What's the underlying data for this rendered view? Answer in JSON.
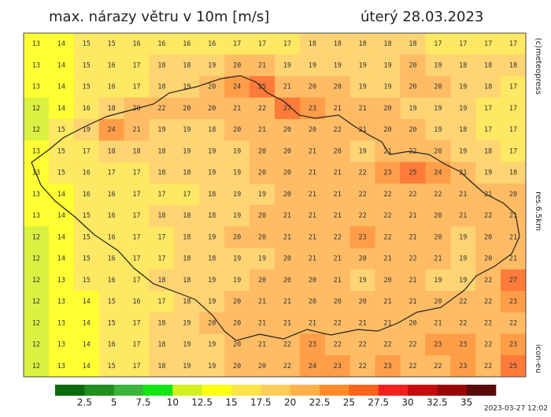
{
  "header": {
    "title": "max. nárazy větru v 10m [m/s]",
    "date": "úterý 28.03.2023"
  },
  "side": {
    "copyright": "(c)meteopress",
    "resolution": "res.6.5km",
    "model": "icon-eu"
  },
  "footer": {
    "timestamp": "2023-03-27 12:02"
  },
  "colorbar": {
    "labels": [
      2.5,
      5,
      7.5,
      10,
      12.5,
      15,
      17.5,
      20,
      22.5,
      25,
      27.5,
      30,
      32.5,
      35
    ],
    "colors": [
      "#0b6b0b",
      "#1f8f1f",
      "#3cb43c",
      "#14e614",
      "#d2f020",
      "#ffff10",
      "#ffe448",
      "#ffcc5a",
      "#ffb04a",
      "#ff8c28",
      "#ff6418",
      "#f42020",
      "#c80a0a",
      "#9a0606",
      "#5a0a0a"
    ]
  },
  "map": {
    "grid": [
      [
        13,
        14,
        15,
        15,
        16,
        16,
        16,
        16,
        17,
        17,
        17,
        18,
        18,
        18,
        18,
        18,
        17,
        17,
        17,
        17
      ],
      [
        13,
        14,
        15,
        16,
        17,
        18,
        18,
        19,
        20,
        21,
        19,
        19,
        19,
        19,
        19,
        20,
        19,
        18,
        18,
        18
      ],
      [
        13,
        14,
        15,
        16,
        17,
        18,
        19,
        20,
        24,
        25,
        21,
        20,
        20,
        19,
        19,
        20,
        20,
        19,
        18,
        17
      ],
      [
        12,
        14,
        16,
        18,
        20,
        22,
        20,
        20,
        21,
        22,
        27,
        23,
        21,
        21,
        20,
        19,
        19,
        19,
        17,
        17
      ],
      [
        12,
        15,
        19,
        24,
        21,
        19,
        19,
        18,
        20,
        21,
        20,
        20,
        22,
        21,
        20,
        20,
        19,
        18,
        17,
        17
      ],
      [
        13,
        15,
        17,
        18,
        18,
        18,
        19,
        19,
        19,
        20,
        20,
        21,
        20,
        19,
        21,
        22,
        20,
        19,
        18,
        17
      ],
      [
        13,
        15,
        16,
        17,
        17,
        18,
        18,
        19,
        19,
        20,
        20,
        21,
        21,
        22,
        23,
        25,
        24,
        21,
        19,
        18
      ],
      [
        13,
        14,
        16,
        16,
        17,
        17,
        17,
        18,
        19,
        19,
        20,
        21,
        21,
        22,
        22,
        22,
        22,
        21,
        21,
        20
      ],
      [
        13,
        14,
        15,
        16,
        17,
        18,
        18,
        18,
        19,
        20,
        21,
        21,
        21,
        22,
        22,
        21,
        20,
        21,
        22,
        21
      ],
      [
        12,
        14,
        15,
        16,
        17,
        17,
        18,
        19,
        20,
        20,
        21,
        21,
        22,
        23,
        22,
        21,
        20,
        19,
        20,
        21
      ],
      [
        12,
        14,
        15,
        16,
        17,
        17,
        18,
        18,
        19,
        19,
        20,
        21,
        21,
        20,
        21,
        22,
        21,
        19,
        20,
        21
      ],
      [
        12,
        13,
        15,
        16,
        17,
        18,
        18,
        19,
        19,
        20,
        20,
        20,
        21,
        19,
        20,
        21,
        19,
        19,
        22,
        27
      ],
      [
        12,
        13,
        14,
        15,
        16,
        17,
        18,
        19,
        20,
        21,
        21,
        20,
        20,
        20,
        21,
        21,
        20,
        22,
        22,
        23
      ],
      [
        12,
        13,
        14,
        15,
        17,
        18,
        19,
        20,
        20,
        21,
        21,
        21,
        22,
        21,
        21,
        20,
        21,
        22,
        22,
        22
      ],
      [
        12,
        13,
        14,
        16,
        17,
        18,
        19,
        19,
        20,
        21,
        22,
        23,
        22,
        22,
        22,
        22,
        23,
        23,
        22,
        23
      ],
      [
        12,
        13,
        14,
        15,
        17,
        18,
        19,
        19,
        20,
        20,
        22,
        24,
        23,
        22,
        23,
        22,
        22,
        23,
        22,
        25
      ]
    ]
  }
}
